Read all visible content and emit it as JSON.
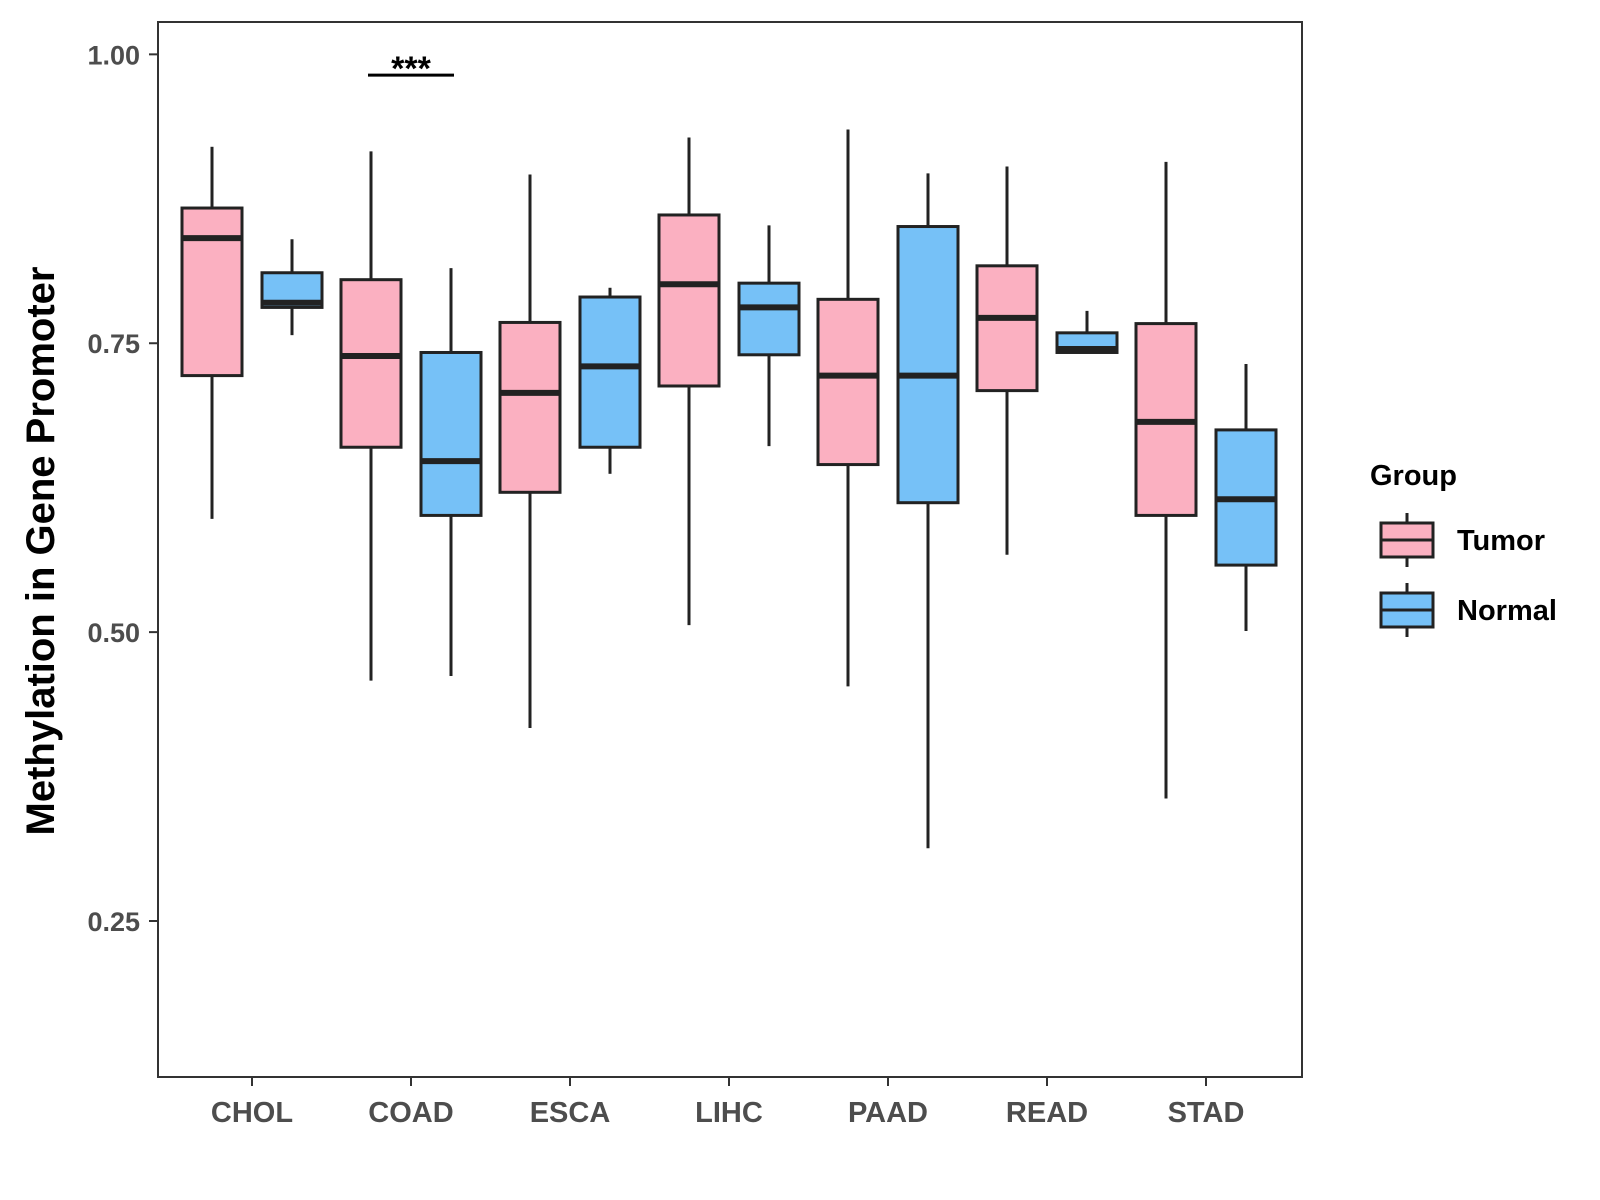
{
  "chart_data": {
    "type": "boxplot",
    "title": "",
    "xlabel": "",
    "ylabel": "Methylation in Gene Promoter",
    "ylim": [
      0.115,
      1.028
    ],
    "yticks": [
      0.25,
      0.5,
      0.75,
      1.0
    ],
    "ytick_labels": [
      "0.25",
      "0.50",
      "0.75",
      "1.00"
    ],
    "grid": false,
    "categories": [
      "CHOL",
      "COAD",
      "ESCA",
      "LIHC",
      "PAAD",
      "READ",
      "STAD"
    ],
    "legend": {
      "title": "Group",
      "placement": "right",
      "entries": [
        {
          "name": "Tumor",
          "color": "#FBB0C1"
        },
        {
          "name": "Normal",
          "color": "#76C1F7"
        }
      ]
    },
    "series": [
      {
        "name": "Tumor",
        "color": "#FBB0C1",
        "boxes": [
          {
            "min": 0.598,
            "q1": 0.722,
            "median": 0.841,
            "q3": 0.867,
            "max": 0.92
          },
          {
            "min": 0.458,
            "q1": 0.66,
            "median": 0.739,
            "q3": 0.805,
            "max": 0.916
          },
          {
            "min": 0.417,
            "q1": 0.621,
            "median": 0.707,
            "q3": 0.768,
            "max": 0.896
          },
          {
            "min": 0.506,
            "q1": 0.713,
            "median": 0.801,
            "q3": 0.861,
            "max": 0.928
          },
          {
            "min": 0.453,
            "q1": 0.645,
            "median": 0.722,
            "q3": 0.788,
            "max": 0.935
          },
          {
            "min": 0.567,
            "q1": 0.709,
            "median": 0.772,
            "q3": 0.817,
            "max": 0.903
          },
          {
            "min": 0.356,
            "q1": 0.601,
            "median": 0.682,
            "q3": 0.767,
            "max": 0.907
          }
        ]
      },
      {
        "name": "Normal",
        "color": "#76C1F7",
        "boxes": [
          {
            "min": 0.757,
            "q1": 0.781,
            "median": 0.785,
            "q3": 0.811,
            "max": 0.84
          },
          {
            "min": 0.462,
            "q1": 0.601,
            "median": 0.648,
            "q3": 0.742,
            "max": 0.815
          },
          {
            "min": 0.637,
            "q1": 0.66,
            "median": 0.73,
            "q3": 0.79,
            "max": 0.798
          },
          {
            "min": 0.661,
            "q1": 0.74,
            "median": 0.781,
            "q3": 0.802,
            "max": 0.852
          },
          {
            "min": 0.313,
            "q1": 0.612,
            "median": 0.722,
            "q3": 0.851,
            "max": 0.897
          },
          {
            "min": 0.742,
            "q1": 0.742,
            "median": 0.745,
            "q3": 0.759,
            "max": 0.778
          },
          {
            "min": 0.501,
            "q1": 0.558,
            "median": 0.615,
            "q3": 0.675,
            "max": 0.732
          }
        ]
      }
    ],
    "annotations": [
      {
        "category": "COAD",
        "text": "***",
        "y": 0.982
      }
    ]
  }
}
